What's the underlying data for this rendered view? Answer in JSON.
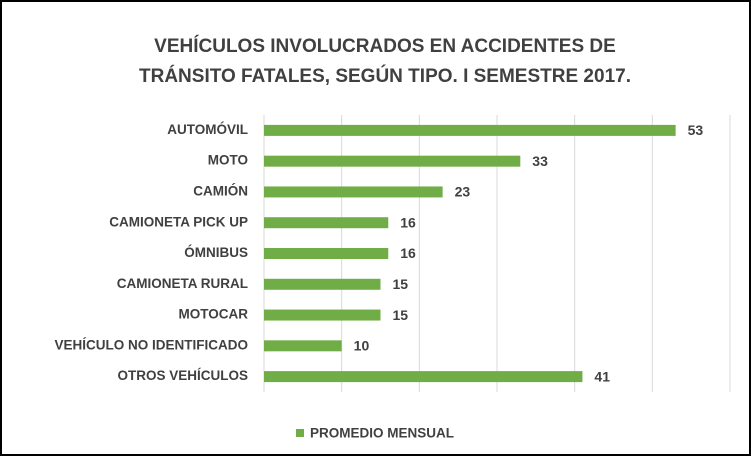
{
  "chart_data": {
    "type": "bar",
    "orientation": "horizontal",
    "title": [
      "VEHÍCULOS INVOLUCRADOS EN ACCIDENTES DE",
      "TRÁNSITO FATALES, SEGÚN TIPO. I SEMESTRE 2017."
    ],
    "categories": [
      "AUTOMÓVIL",
      "MOTO",
      "CAMIÓN",
      "CAMIONETA PICK UP",
      "ÓMNIBUS",
      "CAMIONETA RURAL",
      "MOTOCAR",
      "VEHÍCULO NO IDENTIFICADO",
      "OTROS VEHÍCULOS"
    ],
    "series": [
      {
        "name": "PROMEDIO MENSUAL",
        "color": "#70ad47",
        "values": [
          53,
          33,
          23,
          16,
          16,
          15,
          15,
          10,
          41
        ]
      }
    ],
    "xlim": [
      0,
      60
    ],
    "xticks": [
      0,
      10,
      20,
      30,
      40,
      50,
      60
    ],
    "grid": true,
    "legend": "bottom"
  }
}
